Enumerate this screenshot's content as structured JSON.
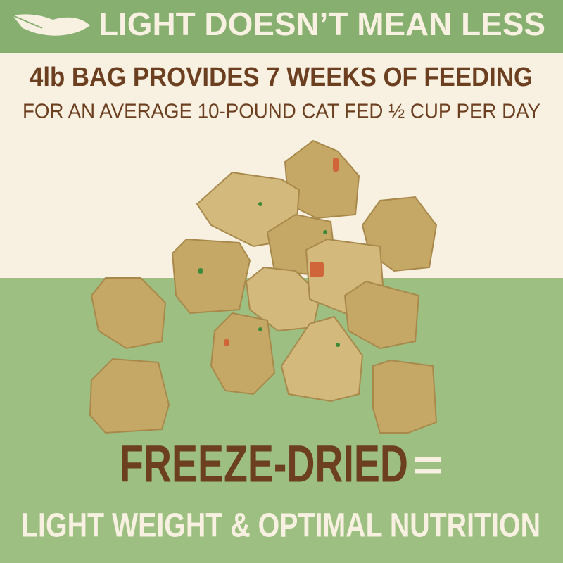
{
  "header": {
    "title": "LIGHT DOESN’T MEAN LESS"
  },
  "subheading": {
    "headline": "4lb BAG PROVIDES 7 WEEKS OF FEEDING",
    "detail": "FOR AN AVERAGE 10-POUND CAT FED ½ CUP PER DAY"
  },
  "footer": {
    "headline": "FREEZE-DRIED",
    "equals": "=",
    "tagline": "LIGHT WEIGHT & OPTIMAL NUTRITION"
  }
}
